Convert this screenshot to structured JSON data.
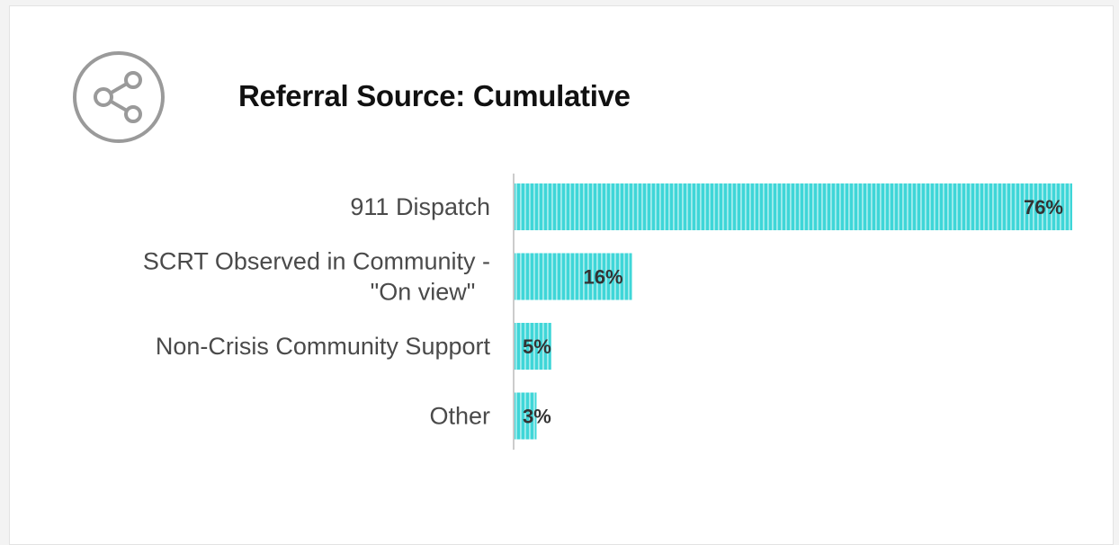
{
  "header": {
    "title": "Referral Source: Cumulative",
    "icon": "share-icon"
  },
  "colors": {
    "bar": "#3fd6d8",
    "bar_stripe": "#ffffff",
    "axis": "#cccccc",
    "icon": "#9a9a9a"
  },
  "chart_data": {
    "type": "bar",
    "orientation": "horizontal",
    "title": "Referral Source: Cumulative",
    "xlabel": "",
    "ylabel": "",
    "categories": [
      [
        "911 Dispatch"
      ],
      [
        "SCRT Observed in Community -",
        "\"On view\""
      ],
      [
        "Non-Crisis Community Support"
      ],
      [
        "Other"
      ]
    ],
    "values": [
      76,
      16,
      5,
      3
    ],
    "value_labels": [
      "76%",
      "16%",
      "5%",
      "3%"
    ],
    "xlim": [
      0,
      76
    ],
    "grid": false,
    "legend": "none"
  }
}
